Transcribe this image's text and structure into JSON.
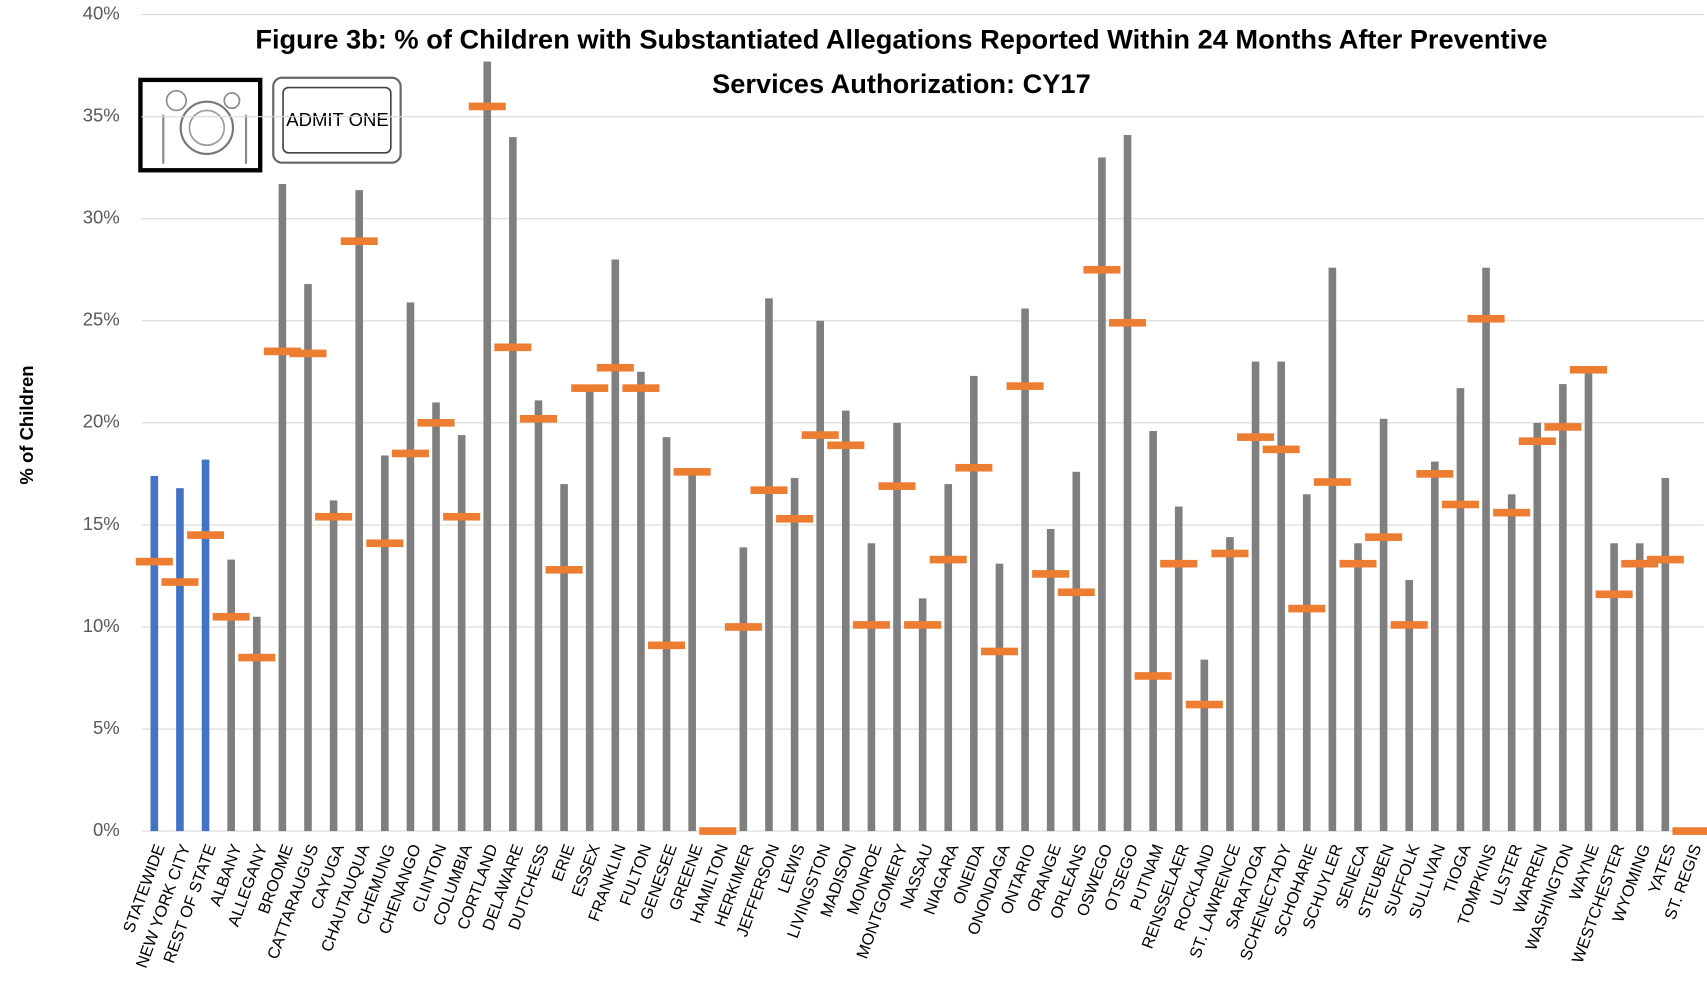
{
  "chart_data": {
    "type": "bar-with-markers",
    "title": "Figure 3b: % of Children with Substantiated Allegations Reported Within 24 Months After Preventive Services Authorization: CY17",
    "y_label": "% of Children",
    "annotations": [
      "ADMIT ONE"
    ],
    "categories": [
      "STATEWIDE",
      "NEW YORK CITY",
      "REST OF STATE",
      "ALBANY",
      "ALLEGANY",
      "BROOME",
      "CATTARAUGUS",
      "CAYUGA",
      "CHAUTAUQUA",
      "CHEMUNG",
      "CHENANGO",
      "CLINTON",
      "COLUMBIA",
      "CORTLAND",
      "DELAWARE",
      "DUTCHESS",
      "ERIE",
      "ESSEX",
      "FRANKLIN",
      "FULTON",
      "GENESEE",
      "GREENE",
      "HAMILTON",
      "HERKIMER",
      "JEFFERSON",
      "LEWIS",
      "LIVINGSTON",
      "MADISON",
      "MONROE",
      "MONTGOMERY",
      "NASSAU",
      "NIAGARA",
      "ONEIDA",
      "ONONDAGA",
      "ONTARIO",
      "ORANGE",
      "ORLEANS",
      "OSWEGO",
      "OTSEGO",
      "PUTNAM",
      "RENSSELAER",
      "ROCKLAND",
      "ST. LAWRENCE",
      "SARATOGA",
      "SCHENECTADY",
      "SCHOHARIE",
      "SCHUYLER",
      "SENECA",
      "STEUBEN",
      "SUFFOLK",
      "SULLIVAN",
      "TIOGA",
      "TOMPKINS",
      "ULSTER",
      "WARREN",
      "WASHINGTON",
      "WAYNE",
      "WESTCHESTER",
      "WYOMING",
      "YATES",
      "ST. REGIS"
    ],
    "series": [
      {
        "kind": "bar",
        "colors": [
          "#4472c4",
          "#4472c4",
          "#4472c4",
          "#7f7f7f",
          "#7f7f7f",
          "#7f7f7f",
          "#7f7f7f",
          "#7f7f7f",
          "#7f7f7f",
          "#7f7f7f",
          "#7f7f7f",
          "#7f7f7f",
          "#7f7f7f",
          "#7f7f7f",
          "#7f7f7f",
          "#7f7f7f",
          "#7f7f7f",
          "#7f7f7f",
          "#7f7f7f",
          "#7f7f7f",
          "#7f7f7f",
          "#7f7f7f",
          "#7f7f7f",
          "#7f7f7f",
          "#7f7f7f",
          "#7f7f7f",
          "#7f7f7f",
          "#7f7f7f",
          "#7f7f7f",
          "#7f7f7f",
          "#7f7f7f",
          "#7f7f7f",
          "#7f7f7f",
          "#7f7f7f",
          "#7f7f7f",
          "#7f7f7f",
          "#7f7f7f",
          "#7f7f7f",
          "#7f7f7f",
          "#7f7f7f",
          "#7f7f7f",
          "#7f7f7f",
          "#7f7f7f",
          "#7f7f7f",
          "#7f7f7f",
          "#7f7f7f",
          "#7f7f7f",
          "#7f7f7f",
          "#7f7f7f",
          "#7f7f7f",
          "#7f7f7f",
          "#7f7f7f",
          "#7f7f7f",
          "#7f7f7f",
          "#7f7f7f",
          "#7f7f7f",
          "#7f7f7f",
          "#7f7f7f",
          "#7f7f7f",
          "#7f7f7f",
          "#7f7f7f"
        ],
        "values": [
          17.4,
          16.8,
          18.2,
          13.3,
          10.5,
          31.7,
          26.8,
          16.2,
          31.4,
          18.4,
          25.9,
          21.0,
          19.4,
          37.7,
          34.0,
          21.1,
          17.0,
          21.7,
          28.0,
          22.5,
          19.3,
          17.6,
          0,
          13.9,
          26.1,
          17.3,
          25.0,
          20.6,
          14.1,
          20.0,
          11.4,
          17.0,
          22.3,
          13.1,
          25.6,
          14.8,
          17.6,
          33.0,
          34.1,
          19.6,
          15.9,
          8.4,
          14.4,
          23.0,
          23.0,
          16.5,
          27.6,
          14.1,
          20.2,
          12.3,
          18.1,
          21.7,
          27.6,
          16.5,
          20.0,
          21.9,
          22.6,
          14.1,
          14.1,
          17.3,
          0
        ]
      },
      {
        "kind": "marker",
        "color": "#ed7d31",
        "values": [
          13.2,
          12.2,
          14.5,
          10.5,
          8.5,
          23.5,
          23.4,
          15.4,
          28.9,
          14.1,
          18.5,
          20.0,
          15.4,
          35.5,
          23.7,
          20.2,
          12.8,
          21.7,
          22.7,
          21.7,
          9.1,
          17.6,
          0,
          10.0,
          16.7,
          15.3,
          19.4,
          18.9,
          10.1,
          16.9,
          10.1,
          13.3,
          17.8,
          8.8,
          21.8,
          12.6,
          11.7,
          27.5,
          24.9,
          7.6,
          13.1,
          6.2,
          13.6,
          19.3,
          18.7,
          10.9,
          17.1,
          13.1,
          14.4,
          10.1,
          17.5,
          16.0,
          25.1,
          15.6,
          19.1,
          19.8,
          22.6,
          11.6,
          13.1,
          13.3,
          0
        ]
      }
    ],
    "ylim": [
      0,
      40
    ],
    "yticks": [
      {
        "value": 0,
        "label": "0%"
      },
      {
        "value": 5,
        "label": "5%"
      },
      {
        "value": 10,
        "label": "10%"
      },
      {
        "value": 15,
        "label": "15%"
      },
      {
        "value": 20,
        "label": "20%"
      },
      {
        "value": 25,
        "label": "25%"
      },
      {
        "value": 30,
        "label": "30%"
      },
      {
        "value": 35,
        "label": "35%"
      },
      {
        "value": 40,
        "label": "40%"
      }
    ],
    "grid": true
  }
}
